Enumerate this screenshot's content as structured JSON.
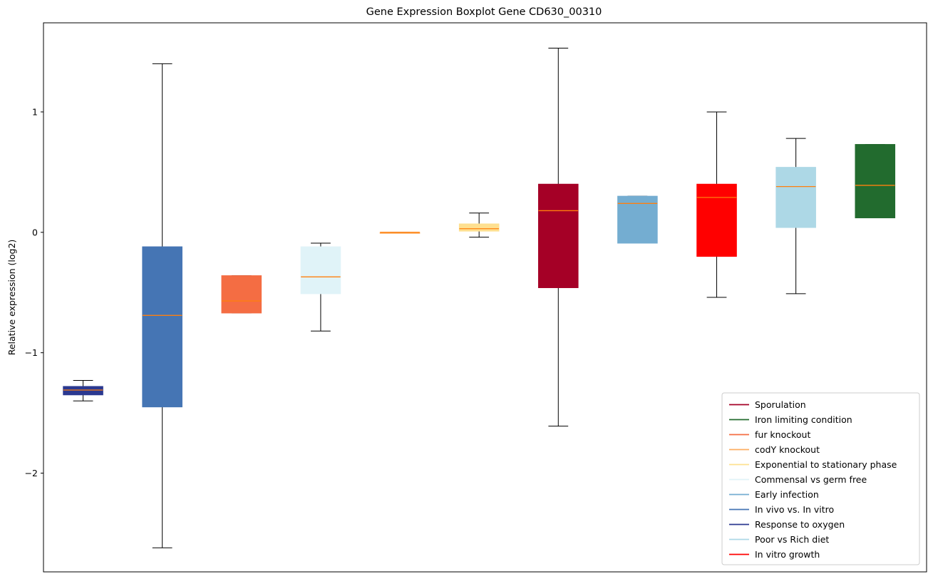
{
  "chart_data": {
    "type": "box",
    "title": "Gene Expression Boxplot Gene CD630_00310",
    "xlabel": "",
    "ylabel": "Relative expression (log2)",
    "ylim": [
      -2.82,
      1.74
    ],
    "yticks": [
      {
        "value": -2,
        "label": "−2"
      },
      {
        "value": -1,
        "label": "−1"
      },
      {
        "value": 0,
        "label": "0"
      },
      {
        "value": 1,
        "label": "1"
      }
    ],
    "grid": false,
    "legend_position": "lower-right",
    "median_color": "#ff7f0e",
    "boxes": [
      {
        "name": "Response to oxygen",
        "color": "#2b3990",
        "whisker_low": -1.4,
        "q1": -1.35,
        "median": -1.31,
        "q3": -1.28,
        "whisker_high": -1.23
      },
      {
        "name": "In vivo vs. In vitro",
        "color": "#4575b4",
        "whisker_low": -2.62,
        "q1": -1.45,
        "median": -0.69,
        "q3": -0.12,
        "whisker_high": 1.4
      },
      {
        "name": "fur knockout",
        "color": "#f46d43",
        "whisker_low": -0.67,
        "q1": -0.67,
        "median": -0.57,
        "q3": -0.36,
        "whisker_high": -0.36
      },
      {
        "name": "Commensal vs germ free",
        "color": "#e0f3f8",
        "whisker_low": -0.82,
        "q1": -0.51,
        "median": -0.37,
        "q3": -0.12,
        "whisker_high": -0.09
      },
      {
        "name": "codY knockout",
        "color": "#fdae61",
        "whisker_low": 0.0,
        "q1": 0.0,
        "median": 0.0,
        "q3": 0.0,
        "whisker_high": 0.0
      },
      {
        "name": "Exponential to stationary phase",
        "color": "#fee090",
        "whisker_low": -0.04,
        "q1": 0.01,
        "median": 0.03,
        "q3": 0.07,
        "whisker_high": 0.16
      },
      {
        "name": "Sporulation",
        "color": "#a50026",
        "whisker_low": -1.61,
        "q1": -0.46,
        "median": 0.18,
        "q3": 0.4,
        "whisker_high": 1.53
      },
      {
        "name": "Early infection",
        "color": "#74add1",
        "whisker_low": -0.09,
        "q1": -0.09,
        "median": 0.24,
        "q3": 0.3,
        "whisker_high": 0.3
      },
      {
        "name": "In vitro growth",
        "color": "#ff0000",
        "whisker_low": -0.54,
        "q1": -0.2,
        "median": 0.29,
        "q3": 0.4,
        "whisker_high": 1.0
      },
      {
        "name": "Poor vs Rich diet",
        "color": "#add8e6",
        "whisker_low": -0.51,
        "q1": 0.04,
        "median": 0.38,
        "q3": 0.54,
        "whisker_high": 0.78
      },
      {
        "name": "Iron limiting condition",
        "color": "#226b2e",
        "whisker_low": 0.12,
        "q1": 0.12,
        "median": 0.39,
        "q3": 0.73,
        "whisker_high": 0.73
      }
    ],
    "legend": [
      {
        "label": "Sporulation",
        "color": "#a50026"
      },
      {
        "label": "Iron limiting condition",
        "color": "#226b2e"
      },
      {
        "label": "fur knockout",
        "color": "#f46d43"
      },
      {
        "label": "codY knockout",
        "color": "#fdae61"
      },
      {
        "label": "Exponential to stationary phase",
        "color": "#fee090"
      },
      {
        "label": "Commensal vs germ free",
        "color": "#e0f3f8"
      },
      {
        "label": "Early infection",
        "color": "#74add1"
      },
      {
        "label": "In vivo vs. In vitro",
        "color": "#4575b4"
      },
      {
        "label": "Response to oxygen",
        "color": "#2b3990"
      },
      {
        "label": "Poor vs Rich diet",
        "color": "#add8e6"
      },
      {
        "label": "In vitro growth",
        "color": "#ff0000"
      }
    ]
  }
}
